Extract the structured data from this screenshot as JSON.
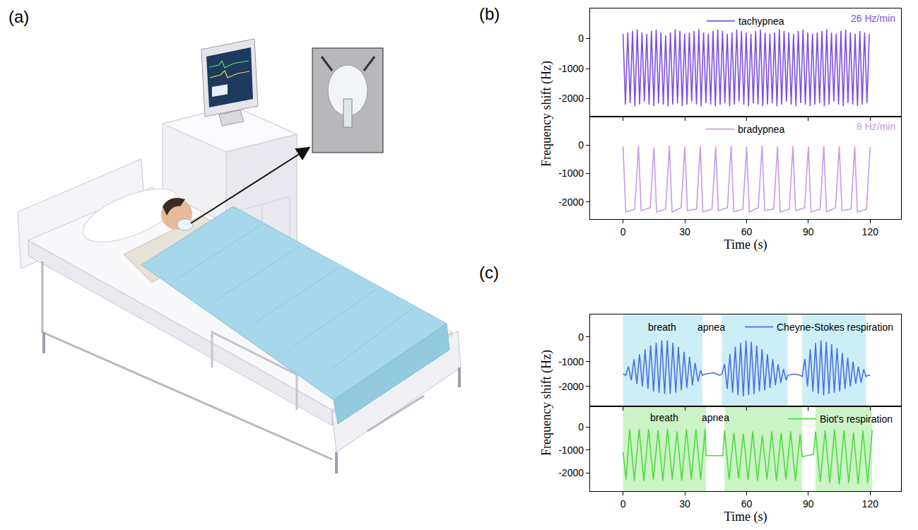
{
  "panel_labels": [
    "(a)",
    "(b)",
    "(c)"
  ],
  "chart_data": [
    {
      "type": "line",
      "xlabel": "Time (s)",
      "ylabel": "Frequency shift (Hz)",
      "xlim": [
        -16,
        135
      ],
      "xticks": [
        0,
        30,
        60,
        90,
        120
      ],
      "grid": false,
      "subplots": [
        {
          "tick_labels": "y",
          "ylim": [
            -2600,
            1000
          ],
          "yticks": [
            0,
            -1000,
            -2000
          ],
          "legend": "upper center",
          "rate": "26 Hz/min",
          "series": [
            {
              "name": "tachypnea",
              "color": "#7b4fe3",
              "x": [
                0,
                1.15,
                2.3,
                3.45,
                4.6,
                5.75,
                6.9,
                8.05,
                9.2,
                10.35,
                11.5,
                12.65,
                13.8,
                14.95,
                16.1,
                17.25,
                18.4,
                19.55,
                20.7,
                21.85,
                23,
                24.15,
                25.3,
                26.45,
                27.6,
                28.75,
                29.9,
                31.05,
                32.2,
                33.35,
                34.5,
                35.65,
                36.8,
                37.95,
                39.1,
                40.25,
                41.4,
                42.55,
                43.7,
                44.85,
                46,
                47.15,
                48.3,
                49.45,
                50.6,
                51.75,
                52.9,
                54.05,
                55.2,
                56.35,
                57.5,
                58.65,
                59.8,
                60.95,
                62.1,
                63.25,
                64.4,
                65.55,
                66.7,
                67.85,
                69,
                70.15,
                71.3,
                72.45,
                73.6,
                74.75,
                75.9,
                77.05,
                78.2,
                79.35,
                80.5,
                81.65,
                82.8,
                83.95,
                85.1,
                86.25,
                87.4,
                88.55,
                89.7,
                90.85,
                92,
                93.15,
                94.3,
                95.45,
                96.6,
                97.75,
                98.9,
                100.05,
                101.2,
                102.35,
                103.5,
                104.65,
                105.8,
                106.95,
                108.1,
                109.25,
                110.4,
                111.55,
                112.7,
                113.85,
                115,
                116.15,
                117.3,
                118.45,
                119.6
              ],
              "values": [
                150,
                -2200,
                200,
                -2150,
                250,
                -2250,
                300,
                -2200,
                200,
                -2100,
                150,
                -2200,
                250,
                -2250,
                300,
                -2150,
                200,
                -2200,
                100,
                -2250,
                200,
                -2200,
                300,
                -2150,
                250,
                -2250,
                150,
                -2200,
                200,
                -2100,
                250,
                -2200,
                300,
                -2250,
                200,
                -2150,
                150,
                -2200,
                250,
                -2250,
                300,
                -2200,
                250,
                -2150,
                150,
                -2250,
                200,
                -2200,
                300,
                -2100,
                250,
                -2200,
                200,
                -2250,
                150,
                -2150,
                250,
                -2200,
                300,
                -2250,
                200,
                -2200,
                150,
                -2150,
                200,
                -2250,
                300,
                -2200,
                250,
                -2100,
                200,
                -2200,
                150,
                -2250,
                250,
                -2150,
                300,
                -2200,
                200,
                -2250,
                150,
                -2200,
                200,
                -2150,
                250,
                -2250,
                300,
                -2200,
                200,
                -2100,
                150,
                -2200,
                250,
                -2250,
                300,
                -2150,
                200,
                -2200,
                150,
                -2250,
                250,
                -2200,
                200,
                -2150,
                150
              ]
            }
          ]
        },
        {
          "ylim": [
            -2600,
            1000
          ],
          "yticks": [
            0,
            -1000,
            -2000
          ],
          "legend": "upper center",
          "rate": "8 Hz/min",
          "series": [
            {
              "name": "bradypnea",
              "color": "#c49be8",
              "x": [
                0,
                1.3,
                5.7,
                7.5,
                8.8,
                13.2,
                15,
                16.3,
                20.7,
                22.5,
                23.8,
                28.2,
                30,
                31.3,
                35.7,
                37.5,
                38.8,
                43.2,
                45,
                46.3,
                50.7,
                52.5,
                53.8,
                58.2,
                60,
                61.3,
                65.7,
                67.5,
                68.8,
                73.2,
                75,
                76.3,
                80.7,
                82.5,
                83.8,
                88.2,
                90,
                91.3,
                95.7,
                97.5,
                98.8,
                103.2,
                105,
                106.3,
                110.7,
                112.5,
                113.8,
                118.2,
                120
              ],
              "values": [
                -50,
                -2350,
                -2250,
                -30,
                -2300,
                -2200,
                -80,
                -2350,
                -2250,
                -20,
                -2350,
                -2200,
                -60,
                -2300,
                -2250,
                -40,
                -2350,
                -2250,
                -50,
                -2300,
                -2200,
                -30,
                -2350,
                -2250,
                -70,
                -2350,
                -2200,
                -20,
                -2300,
                -2250,
                -50,
                -2350,
                -2250,
                -40,
                -2300,
                -2200,
                -60,
                -2350,
                -2250,
                -30,
                -2350,
                -2200,
                -50,
                -2300,
                -2250,
                -40,
                -2350,
                -2250,
                -60
              ]
            }
          ]
        }
      ]
    },
    {
      "type": "line",
      "xlabel": "Time (s)",
      "ylabel": "Frequency shift (Hz)",
      "xlim": [
        -16,
        135
      ],
      "xticks": [
        0,
        30,
        60,
        90,
        120
      ],
      "grid": false,
      "subplots": [
        {
          "tick_labels": "y",
          "ylim": [
            -2800,
            900
          ],
          "yticks": [
            0,
            -1000,
            -2000
          ],
          "legend": "upper right",
          "highlights": {
            "color": "#cdeef6",
            "intervals": [
              [
                0,
                38.5
              ],
              [
                48,
                80
              ],
              [
                87,
                118
              ]
            ]
          },
          "annotations": [
            {
              "text": "breath",
              "x": 19,
              "y": 400
            },
            {
              "text": "apnea",
              "x": 43,
              "y": 400
            }
          ],
          "series": [
            {
              "name": "Cheyne-Stokes respiration",
              "color": "#4a72e0",
              "x": [
                0,
                1.3,
                2.6,
                4.0,
                5.3,
                6.7,
                8.0,
                9.4,
                10.7,
                12.1,
                13.4,
                14.8,
                16.1,
                17.5,
                18.8,
                20.2,
                21.5,
                22.9,
                24.2,
                25.6,
                26.9,
                28.3,
                29.6,
                31.0,
                32.3,
                33.7,
                35.0,
                36.4,
                37.7,
                38.5,
                40,
                44,
                47,
                48.0,
                49.3,
                50.6,
                51.9,
                53.2,
                54.5,
                55.8,
                57.1,
                58.4,
                59.7,
                61.0,
                62.3,
                63.6,
                64.9,
                66.2,
                67.5,
                68.8,
                70.1,
                71.4,
                72.7,
                74.0,
                75.3,
                76.6,
                77.9,
                79.2,
                80.0,
                83,
                86,
                87.0,
                88.3,
                89.6,
                90.9,
                92.2,
                93.5,
                94.8,
                96.1,
                97.4,
                98.7,
                100.0,
                101.3,
                102.6,
                103.9,
                105.2,
                106.5,
                107.8,
                109.1,
                110.4,
                111.7,
                113.0,
                114.3,
                115.6,
                116.9,
                118.0,
                119,
                120
              ],
              "values": [
                -1500,
                -1550,
                -1200,
                -1750,
                -900,
                -1900,
                -700,
                -2000,
                -500,
                -2100,
                -350,
                -2200,
                -250,
                -2250,
                -150,
                -2300,
                -150,
                -2300,
                -250,
                -2250,
                -400,
                -2150,
                -600,
                -2050,
                -800,
                -1950,
                -1050,
                -1800,
                -1350,
                -1550,
                -1500,
                -1450,
                -1550,
                -1500,
                -1100,
                -2100,
                -700,
                -2250,
                -400,
                -2350,
                -250,
                -2400,
                -150,
                -2350,
                -200,
                -2300,
                -350,
                -2200,
                -500,
                -2150,
                -700,
                -2050,
                -900,
                -1950,
                -1100,
                -1850,
                -1300,
                -1750,
                -1550,
                -1500,
                -1550,
                -1600,
                -900,
                -2000,
                -500,
                -2200,
                -250,
                -2300,
                -150,
                -2350,
                -200,
                -2300,
                -300,
                -2250,
                -450,
                -2200,
                -650,
                -2100,
                -850,
                -2000,
                -1000,
                -1900,
                -1200,
                -1850,
                -1300,
                -1600,
                -1550,
                -1550
              ]
            }
          ]
        },
        {
          "ylim": [
            -2800,
            900
          ],
          "yticks": [
            0,
            -1000,
            -2000
          ],
          "legend": "upper right",
          "highlights": {
            "color": "#ccf3c6",
            "intervals": [
              [
                0,
                40.3
              ],
              [
                49.3,
                87
              ],
              [
                93.5,
                121
              ]
            ]
          },
          "annotations": [
            {
              "text": "breath",
              "x": 20,
              "y": 400
            },
            {
              "text": "apnea",
              "x": 45,
              "y": 400
            }
          ],
          "series": [
            {
              "name": "Biot's respiration",
              "color": "#4ade3e",
              "x": [
                0,
                1.5,
                3.2,
                5.5,
                7.8,
                10.1,
                12.4,
                14.7,
                17.0,
                19.3,
                21.6,
                23.9,
                26.2,
                28.5,
                30.8,
                33.1,
                35.4,
                37.7,
                39.8,
                40.3,
                48.5,
                49.3,
                51.5,
                53.8,
                56.1,
                58.4,
                60.7,
                63.0,
                65.3,
                67.6,
                69.9,
                72.2,
                74.5,
                76.8,
                79.1,
                81.4,
                83.7,
                86.0,
                87.0,
                92.5,
                93.5,
                95.8,
                98.1,
                100.4,
                102.7,
                105.0,
                107.3,
                109.6,
                111.9,
                114.2,
                116.5,
                118.8,
                121.0
              ],
              "values": [
                -1100,
                -2300,
                -100,
                -2350,
                -80,
                -2350,
                -100,
                -2300,
                -150,
                -2350,
                -100,
                -2300,
                -200,
                -2350,
                -100,
                -2300,
                -100,
                -2300,
                -100,
                -1250,
                -1250,
                -150,
                -2300,
                -250,
                -2250,
                -300,
                -2300,
                -200,
                -2350,
                -350,
                -2300,
                -200,
                -2350,
                -250,
                -2300,
                -200,
                -2350,
                -300,
                -1300,
                -1200,
                -200,
                -2400,
                -150,
                -2450,
                -100,
                -2500,
                -150,
                -2450,
                -250,
                -2500,
                -150,
                -2450,
                -150
              ]
            }
          ]
        }
      ]
    }
  ]
}
